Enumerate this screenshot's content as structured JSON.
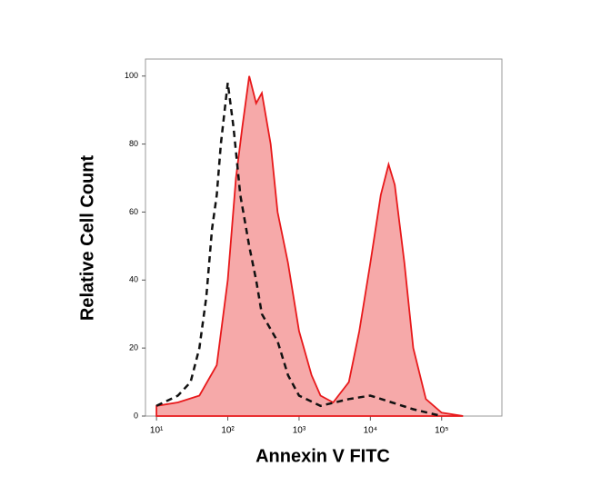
{
  "chart_data": {
    "type": "histogram-overlay",
    "x_label": "Annexin V FITC",
    "y_label": "Relative Cell Count",
    "xscale": "log",
    "xlim": [
      7,
      700000
    ],
    "ylim": [
      0,
      105
    ],
    "xticks": [
      {
        "value": 10,
        "label": "10¹"
      },
      {
        "value": 100,
        "label": "10²"
      },
      {
        "value": 1000,
        "label": "10³"
      },
      {
        "value": 10000,
        "label": "10⁴"
      },
      {
        "value": 100000,
        "label": "10⁵"
      }
    ],
    "yticks": [
      0,
      20,
      40,
      60,
      80,
      100
    ],
    "series": [
      {
        "color": "#e8191b",
        "fill": "#f59a9a",
        "style": "solid",
        "x": [
          10,
          20,
          40,
          70,
          100,
          130,
          160,
          200,
          250,
          300,
          400,
          500,
          700,
          1000,
          1500,
          2000,
          3000,
          5000,
          7000,
          10000,
          14000,
          18000,
          22000,
          30000,
          40000,
          60000,
          100000,
          200000
        ],
        "values": [
          3,
          4,
          6,
          15,
          40,
          70,
          85,
          100,
          92,
          95,
          80,
          60,
          45,
          25,
          12,
          6,
          4,
          10,
          25,
          45,
          65,
          74,
          68,
          45,
          20,
          5,
          1,
          0
        ]
      },
      {
        "color": "#111111",
        "style": "dashed",
        "x": [
          10,
          20,
          30,
          40,
          50,
          60,
          70,
          80,
          100,
          120,
          150,
          200,
          250,
          300,
          500,
          700,
          1000,
          2000,
          5000,
          10000,
          20000,
          40000,
          100000
        ],
        "values": [
          3,
          6,
          10,
          20,
          35,
          55,
          65,
          80,
          98,
          85,
          65,
          50,
          40,
          30,
          22,
          12,
          6,
          3,
          5,
          6,
          4,
          2,
          0
        ]
      }
    ]
  }
}
